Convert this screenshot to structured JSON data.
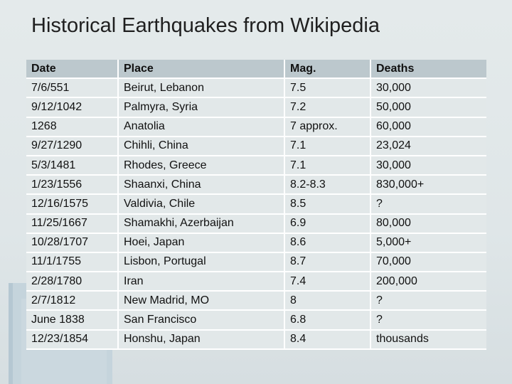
{
  "slide": {
    "title": "Historical Earthquakes from Wikipedia"
  },
  "table": {
    "headers": [
      "Date",
      "Place",
      "Mag.",
      "Deaths"
    ],
    "rows": [
      [
        "7/6/551",
        "Beirut, Lebanon",
        "7.5",
        "30,000"
      ],
      [
        "9/12/1042",
        "Palmyra, Syria",
        "7.2",
        "50,000"
      ],
      [
        "1268",
        "Anatolia",
        "7 approx.",
        "60,000"
      ],
      [
        "9/27/1290",
        "Chihli, China",
        "7.1",
        "23,024"
      ],
      [
        "5/3/1481",
        "Rhodes, Greece",
        "7.1",
        "30,000"
      ],
      [
        "1/23/1556",
        "Shaanxi, China",
        "8.2-8.3",
        "830,000+"
      ],
      [
        "12/16/1575",
        "Valdivia, Chile",
        "8.5",
        "?"
      ],
      [
        "11/25/1667",
        "Shamakhi, Azerbaijan",
        "6.9",
        "80,000"
      ],
      [
        "10/28/1707",
        "Hoei, Japan",
        "8.6",
        "5,000+"
      ],
      [
        "11/1/1755",
        "Lisbon, Portugal",
        "8.7",
        "70,000"
      ],
      [
        "2/28/1780",
        "Iran",
        "7.4",
        "200,000"
      ],
      [
        "2/7/1812",
        "New Madrid, MO",
        "8",
        "?"
      ],
      [
        "June 1838",
        "San Francisco",
        "6.8",
        "?"
      ],
      [
        "12/23/1854",
        "Honshu, Japan",
        "8.4",
        "thousands"
      ]
    ]
  }
}
